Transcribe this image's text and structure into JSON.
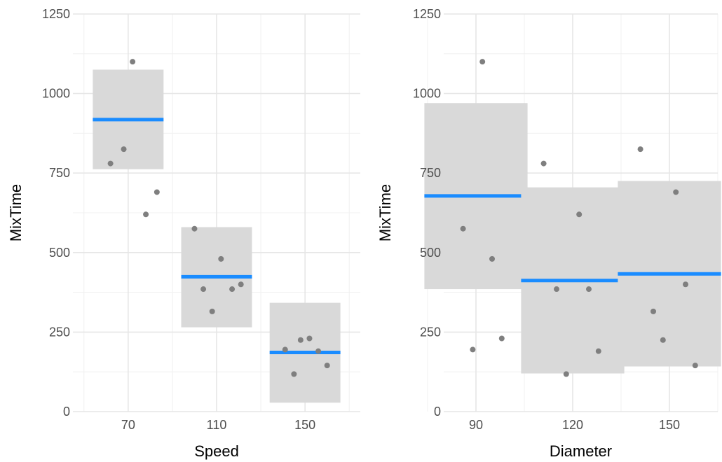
{
  "chart_data": [
    {
      "type": "scatter",
      "xlabel": "Speed",
      "ylabel": "MixTime",
      "ylim": [
        0,
        1250
      ],
      "y_ticks": [
        0,
        250,
        500,
        750,
        1000,
        1250
      ],
      "y_tick_labels": [
        "0",
        "250",
        "500",
        "750",
        "1000",
        "1250"
      ],
      "categories": [
        "70",
        "110",
        "150"
      ],
      "groups": [
        {
          "category": "70",
          "mean": 918,
          "band": [
            762,
            1075
          ]
        },
        {
          "category": "110",
          "mean": 424,
          "band": [
            265,
            580
          ]
        },
        {
          "category": "150",
          "mean": 186,
          "band": [
            28,
            342
          ]
        }
      ],
      "points": [
        {
          "x": 62,
          "y": 780
        },
        {
          "x": 68,
          "y": 825
        },
        {
          "x": 72,
          "y": 1100
        },
        {
          "x": 78,
          "y": 620
        },
        {
          "x": 83,
          "y": 690
        },
        {
          "x": 100,
          "y": 575
        },
        {
          "x": 104,
          "y": 385
        },
        {
          "x": 108,
          "y": 315
        },
        {
          "x": 112,
          "y": 480
        },
        {
          "x": 117,
          "y": 385
        },
        {
          "x": 121,
          "y": 400
        },
        {
          "x": 141,
          "y": 195
        },
        {
          "x": 145,
          "y": 118
        },
        {
          "x": 148,
          "y": 225
        },
        {
          "x": 152,
          "y": 230
        },
        {
          "x": 156,
          "y": 190
        },
        {
          "x": 160,
          "y": 145
        }
      ],
      "grid": true,
      "point_color": "#7f7f7f",
      "band_color": "#d9d9d9",
      "mean_color": "#1a8cff"
    },
    {
      "type": "scatter",
      "xlabel": "Diameter",
      "ylabel": "MixTime",
      "ylim": [
        0,
        1250
      ],
      "y_ticks": [
        0,
        250,
        500,
        750,
        1000,
        1250
      ],
      "y_tick_labels": [
        "0",
        "250",
        "500",
        "750",
        "1000",
        "1250"
      ],
      "categories": [
        "90",
        "120",
        "150"
      ],
      "groups": [
        {
          "category": "90",
          "mean": 678,
          "band": [
            385,
            970
          ]
        },
        {
          "category": "120",
          "mean": 412,
          "band": [
            120,
            705
          ]
        },
        {
          "category": "150",
          "mean": 433,
          "band": [
            142,
            725
          ]
        }
      ],
      "points": [
        {
          "x": 86,
          "y": 575
        },
        {
          "x": 89,
          "y": 195
        },
        {
          "x": 92,
          "y": 1100
        },
        {
          "x": 95,
          "y": 480
        },
        {
          "x": 98,
          "y": 230
        },
        {
          "x": 111,
          "y": 780
        },
        {
          "x": 115,
          "y": 385
        },
        {
          "x": 118,
          "y": 118
        },
        {
          "x": 122,
          "y": 620
        },
        {
          "x": 125,
          "y": 385
        },
        {
          "x": 128,
          "y": 190
        },
        {
          "x": 141,
          "y": 825
        },
        {
          "x": 145,
          "y": 315
        },
        {
          "x": 148,
          "y": 225
        },
        {
          "x": 152,
          "y": 690
        },
        {
          "x": 155,
          "y": 400
        },
        {
          "x": 158,
          "y": 145
        }
      ],
      "grid": true,
      "point_color": "#7f7f7f",
      "band_color": "#d9d9d9",
      "mean_color": "#1a8cff"
    }
  ]
}
